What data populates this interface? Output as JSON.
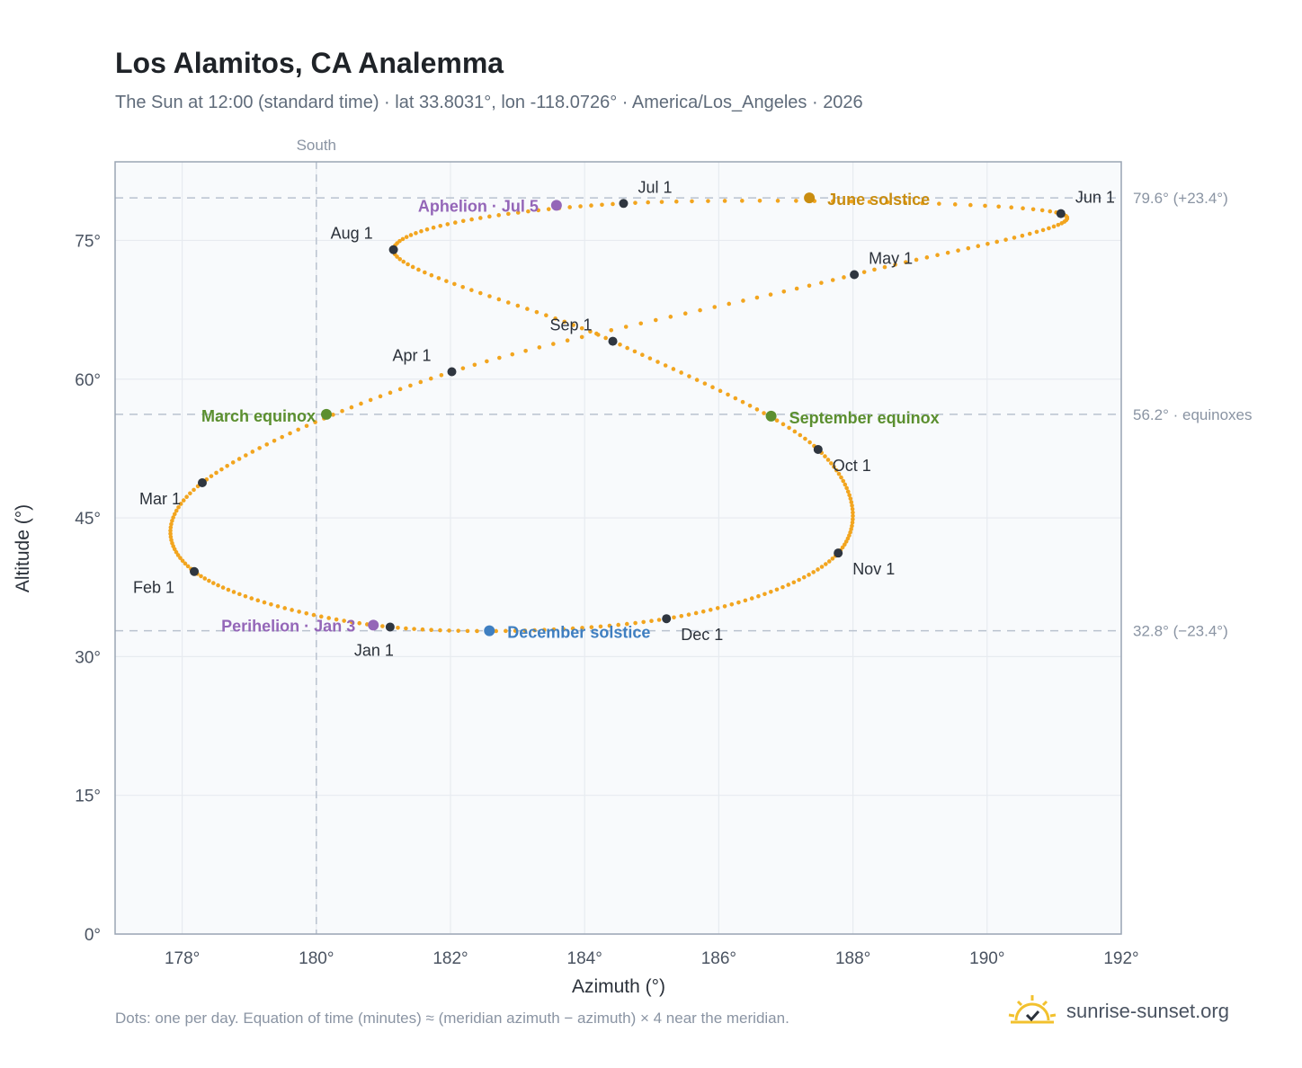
{
  "title": "Los Alamitos, CA Analemma",
  "subtitle": "The Sun at 12:00 (standard time) · lat 33.8031°, lon -118.0726° · America/Los_Angeles · 2026",
  "footnote": "Dots: one per day. Equation of time (minutes) ≈ (meridian azimuth − azimuth) × 4 near the meridian.",
  "brand": {
    "text": "sunrise-sunset.org",
    "icon": "sun-logo-icon"
  },
  "colors": {
    "curve": "#f2a51f",
    "month_marker": "#2f3640",
    "equinox": "#5b8f2f",
    "june_solstice": "#c98d10",
    "december_solstice": "#3f7fc1",
    "apsis": "#9466b8",
    "reference_line": "#b9c2cf",
    "plot_background": "#f8fafc",
    "grid": "#e7ebf0",
    "frame": "#9aa5b4"
  },
  "chart_data": {
    "type": "scatter",
    "title": "Los Alamitos, CA Analemma",
    "xlabel": "Azimuth (°)",
    "ylabel": "Altitude (°)",
    "xlim": [
      177,
      192
    ],
    "ylim": [
      0,
      83.5
    ],
    "x_ticks": [
      178,
      180,
      182,
      184,
      186,
      188,
      190,
      192
    ],
    "y_ticks": [
      0,
      15,
      30,
      45,
      60,
      75
    ],
    "x_tick_labels": [
      "178°",
      "180°",
      "182°",
      "184°",
      "186°",
      "188°",
      "190°",
      "192°"
    ],
    "y_tick_labels": [
      "0°",
      "15°",
      "30°",
      "45°",
      "60°",
      "75°"
    ],
    "grid": true,
    "south_line": {
      "azimuth": 180,
      "label": "South"
    },
    "reference_lines": [
      {
        "altitude": 79.6,
        "label": "79.6° (+23.4°)"
      },
      {
        "altitude": 56.2,
        "label": "56.2° · equinoxes"
      },
      {
        "altitude": 32.8,
        "label": "32.8° (−23.4°)"
      }
    ],
    "curve_control_points": [
      {
        "day": 1,
        "az": 181.1,
        "alt": 33.2
      },
      {
        "day": 32,
        "az": 178.18,
        "alt": 39.2
      },
      {
        "day": 60,
        "az": 178.3,
        "alt": 48.8
      },
      {
        "day": 91,
        "az": 182.02,
        "alt": 60.8
      },
      {
        "day": 121,
        "az": 188.02,
        "alt": 71.3
      },
      {
        "day": 152,
        "az": 191.1,
        "alt": 77.9
      },
      {
        "day": 182,
        "az": 184.58,
        "alt": 79.0
      },
      {
        "day": 213,
        "az": 181.15,
        "alt": 74.0
      },
      {
        "day": 244,
        "az": 184.42,
        "alt": 64.1
      },
      {
        "day": 274,
        "az": 187.48,
        "alt": 52.4
      },
      {
        "day": 305,
        "az": 187.78,
        "alt": 41.2
      },
      {
        "day": 335,
        "az": 185.22,
        "alt": 34.1
      },
      {
        "day": 366,
        "az": 181.1,
        "alt": 33.2
      }
    ],
    "month_markers": [
      {
        "label": "Jan 1",
        "az": 181.1,
        "alt": 33.2
      },
      {
        "label": "Feb 1",
        "az": 178.18,
        "alt": 39.2
      },
      {
        "label": "Mar 1",
        "az": 178.3,
        "alt": 48.8
      },
      {
        "label": "Apr 1",
        "az": 182.02,
        "alt": 60.8
      },
      {
        "label": "May 1",
        "az": 188.02,
        "alt": 71.3
      },
      {
        "label": "Jun 1",
        "az": 191.1,
        "alt": 77.9
      },
      {
        "label": "Jul 1",
        "az": 184.58,
        "alt": 79.0
      },
      {
        "label": "Aug 1",
        "az": 181.15,
        "alt": 74.0
      },
      {
        "label": "Sep 1",
        "az": 184.42,
        "alt": 64.1
      },
      {
        "label": "Oct 1",
        "az": 187.48,
        "alt": 52.4
      },
      {
        "label": "Nov 1",
        "az": 187.78,
        "alt": 41.2
      },
      {
        "label": "Dec 1",
        "az": 185.22,
        "alt": 34.1
      }
    ],
    "events": [
      {
        "label": "March equinox",
        "az": 180.15,
        "alt": 56.2,
        "color": "#5b8f2f"
      },
      {
        "label": "June solstice",
        "az": 187.35,
        "alt": 79.6,
        "color": "#c98d10"
      },
      {
        "label": "September equinox",
        "az": 186.78,
        "alt": 56.0,
        "color": "#5b8f2f"
      },
      {
        "label": "December solstice",
        "az": 182.58,
        "alt": 32.8,
        "color": "#3f7fc1"
      },
      {
        "label": "Perihelion · Jan 3",
        "az": 180.85,
        "alt": 33.4,
        "color": "#9466b8"
      },
      {
        "label": "Aphelion · Jul 5",
        "az": 183.58,
        "alt": 78.8,
        "color": "#9466b8"
      }
    ]
  }
}
